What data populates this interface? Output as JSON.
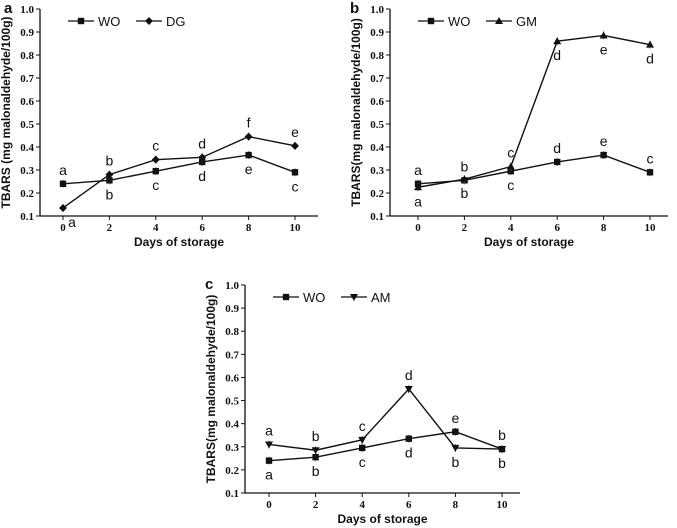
{
  "chart_data": [
    {
      "type": "line",
      "panel_label": "a",
      "xlabel": "Days of storage",
      "ylabel": "TBARS (mg malonaldehyde/100g)",
      "x": [
        0,
        2,
        4,
        6,
        8,
        10
      ],
      "xticks": [
        "0",
        "2",
        "4",
        "6",
        "8",
        "10"
      ],
      "yticks": [
        "0.1",
        "0.2",
        "0.3",
        "0.4",
        "0.5",
        "0.6",
        "0.7",
        "0.8",
        "0.9",
        "1.0"
      ],
      "ylim": [
        0.1,
        1.0
      ],
      "legend_position": "top-left",
      "series": [
        {
          "name": "WO",
          "marker": "square",
          "values": [
            0.24,
            0.255,
            0.295,
            0.335,
            0.365,
            0.29
          ],
          "letters": [
            "a",
            "b",
            "c",
            "d",
            "e",
            "c"
          ],
          "letter_pos": [
            "above",
            "below",
            "below",
            "below",
            "below",
            "below"
          ]
        },
        {
          "name": "DG",
          "marker": "diamond",
          "values": [
            0.135,
            0.28,
            0.345,
            0.355,
            0.445,
            0.405
          ],
          "letters": [
            "a",
            "b",
            "c",
            "d",
            "f",
            "e"
          ],
          "letter_pos": [
            "below",
            "above",
            "above",
            "above",
            "above",
            "above"
          ]
        }
      ]
    },
    {
      "type": "line",
      "panel_label": "b",
      "xlabel": "Days of storage",
      "ylabel": "TBARS(mg malonaldehyde/100g)",
      "x": [
        0,
        2,
        4,
        6,
        8,
        10
      ],
      "xticks": [
        "0",
        "2",
        "4",
        "6",
        "8",
        "10"
      ],
      "yticks": [
        "0.1",
        "0.2",
        "0.3",
        "0.4",
        "0.5",
        "0.6",
        "0.7",
        "0.8",
        "0.9",
        "1.0"
      ],
      "ylim": [
        0.1,
        1.0
      ],
      "legend_position": "top-left",
      "series": [
        {
          "name": "WO",
          "marker": "square",
          "values": [
            0.24,
            0.255,
            0.295,
            0.335,
            0.365,
            0.29
          ],
          "letters": [
            "a",
            "b",
            "c",
            "d",
            "e",
            "c"
          ],
          "letter_pos": [
            "above",
            "above",
            "below",
            "above",
            "above",
            "above"
          ]
        },
        {
          "name": "GM",
          "marker": "triangle",
          "values": [
            0.225,
            0.26,
            0.315,
            0.86,
            0.885,
            0.845
          ],
          "letters": [
            "a",
            "b",
            "c",
            "d",
            "e",
            "d"
          ],
          "letter_pos": [
            "below",
            "below",
            "above",
            "below",
            "below",
            "below"
          ]
        }
      ]
    },
    {
      "type": "line",
      "panel_label": "c",
      "xlabel": "Days of storage",
      "ylabel": "TBARS(mg malonaldehyde/100g)",
      "x": [
        0,
        2,
        4,
        6,
        8,
        10
      ],
      "xticks": [
        "0",
        "2",
        "4",
        "6",
        "8",
        "10"
      ],
      "yticks": [
        "0.1",
        "0.2",
        "0.3",
        "0.4",
        "0.5",
        "0.6",
        "0.7",
        "0.8",
        "0.9",
        "1.0"
      ],
      "ylim": [
        0.1,
        1.0
      ],
      "legend_position": "top-left",
      "series": [
        {
          "name": "WO",
          "marker": "square",
          "values": [
            0.24,
            0.255,
            0.295,
            0.335,
            0.365,
            0.29
          ],
          "letters": [
            "a",
            "b",
            "c",
            "d",
            "e",
            "b"
          ],
          "letter_pos": [
            "below",
            "below",
            "below",
            "below",
            "above",
            "below"
          ]
        },
        {
          "name": "AM",
          "marker": "triangle-down",
          "values": [
            0.31,
            0.285,
            0.33,
            0.55,
            0.295,
            0.29
          ],
          "letters": [
            "a",
            "b",
            "c",
            "d",
            "b",
            "b"
          ],
          "letter_pos": [
            "above",
            "above",
            "above",
            "above",
            "below",
            "above"
          ]
        }
      ]
    }
  ]
}
